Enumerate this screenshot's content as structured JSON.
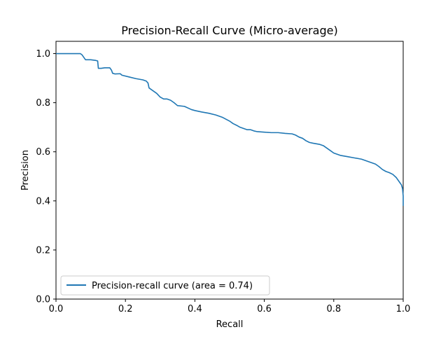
{
  "chart_data": {
    "type": "line",
    "title": "Precision-Recall Curve (Micro-average)",
    "xlabel": "Recall",
    "ylabel": "Precision",
    "xlim": [
      0.0,
      1.0
    ],
    "ylim": [
      0.0,
      1.05
    ],
    "xticks": [
      0.0,
      0.2,
      0.4,
      0.6,
      0.8,
      1.0
    ],
    "xtick_labels": [
      "0.0",
      "0.2",
      "0.4",
      "0.6",
      "0.8",
      "1.0"
    ],
    "yticks": [
      0.0,
      0.2,
      0.4,
      0.6,
      0.8,
      1.0
    ],
    "ytick_labels": [
      "0.0",
      "0.2",
      "0.4",
      "0.6",
      "0.8",
      "1.0"
    ],
    "grid": false,
    "legend": {
      "location": "lower-left",
      "entries": [
        "Precision-recall curve (area = 0.74)"
      ]
    },
    "series": [
      {
        "name": "Precision-recall curve (area = 0.74)",
        "color": "#1f77b4",
        "points": [
          [
            0.0,
            1.0
          ],
          [
            0.07,
            1.0
          ],
          [
            0.075,
            0.995
          ],
          [
            0.08,
            0.985
          ],
          [
            0.085,
            0.975
          ],
          [
            0.1,
            0.975
          ],
          [
            0.115,
            0.972
          ],
          [
            0.12,
            0.97
          ],
          [
            0.122,
            0.94
          ],
          [
            0.13,
            0.94
          ],
          [
            0.14,
            0.942
          ],
          [
            0.155,
            0.942
          ],
          [
            0.16,
            0.932
          ],
          [
            0.163,
            0.92
          ],
          [
            0.17,
            0.917
          ],
          [
            0.185,
            0.918
          ],
          [
            0.19,
            0.912
          ],
          [
            0.21,
            0.905
          ],
          [
            0.23,
            0.898
          ],
          [
            0.25,
            0.893
          ],
          [
            0.26,
            0.888
          ],
          [
            0.265,
            0.88
          ],
          [
            0.268,
            0.86
          ],
          [
            0.28,
            0.848
          ],
          [
            0.29,
            0.838
          ],
          [
            0.3,
            0.823
          ],
          [
            0.31,
            0.815
          ],
          [
            0.32,
            0.815
          ],
          [
            0.33,
            0.81
          ],
          [
            0.34,
            0.8
          ],
          [
            0.35,
            0.788
          ],
          [
            0.37,
            0.785
          ],
          [
            0.39,
            0.772
          ],
          [
            0.4,
            0.768
          ],
          [
            0.42,
            0.762
          ],
          [
            0.44,
            0.757
          ],
          [
            0.46,
            0.75
          ],
          [
            0.48,
            0.74
          ],
          [
            0.5,
            0.725
          ],
          [
            0.51,
            0.715
          ],
          [
            0.52,
            0.708
          ],
          [
            0.53,
            0.7
          ],
          [
            0.54,
            0.695
          ],
          [
            0.55,
            0.69
          ],
          [
            0.56,
            0.69
          ],
          [
            0.57,
            0.685
          ],
          [
            0.58,
            0.682
          ],
          [
            0.6,
            0.68
          ],
          [
            0.62,
            0.678
          ],
          [
            0.64,
            0.678
          ],
          [
            0.66,
            0.675
          ],
          [
            0.68,
            0.673
          ],
          [
            0.69,
            0.668
          ],
          [
            0.7,
            0.66
          ],
          [
            0.71,
            0.655
          ],
          [
            0.72,
            0.645
          ],
          [
            0.73,
            0.638
          ],
          [
            0.74,
            0.635
          ],
          [
            0.76,
            0.63
          ],
          [
            0.77,
            0.625
          ],
          [
            0.78,
            0.615
          ],
          [
            0.79,
            0.605
          ],
          [
            0.8,
            0.595
          ],
          [
            0.81,
            0.59
          ],
          [
            0.82,
            0.585
          ],
          [
            0.84,
            0.58
          ],
          [
            0.86,
            0.575
          ],
          [
            0.88,
            0.57
          ],
          [
            0.9,
            0.56
          ],
          [
            0.91,
            0.555
          ],
          [
            0.92,
            0.55
          ],
          [
            0.93,
            0.54
          ],
          [
            0.94,
            0.528
          ],
          [
            0.95,
            0.52
          ],
          [
            0.96,
            0.515
          ],
          [
            0.97,
            0.508
          ],
          [
            0.98,
            0.495
          ],
          [
            0.99,
            0.475
          ],
          [
            0.995,
            0.465
          ],
          [
            0.998,
            0.45
          ],
          [
            1.0,
            0.42
          ],
          [
            1.0,
            0.38
          ]
        ]
      }
    ]
  }
}
